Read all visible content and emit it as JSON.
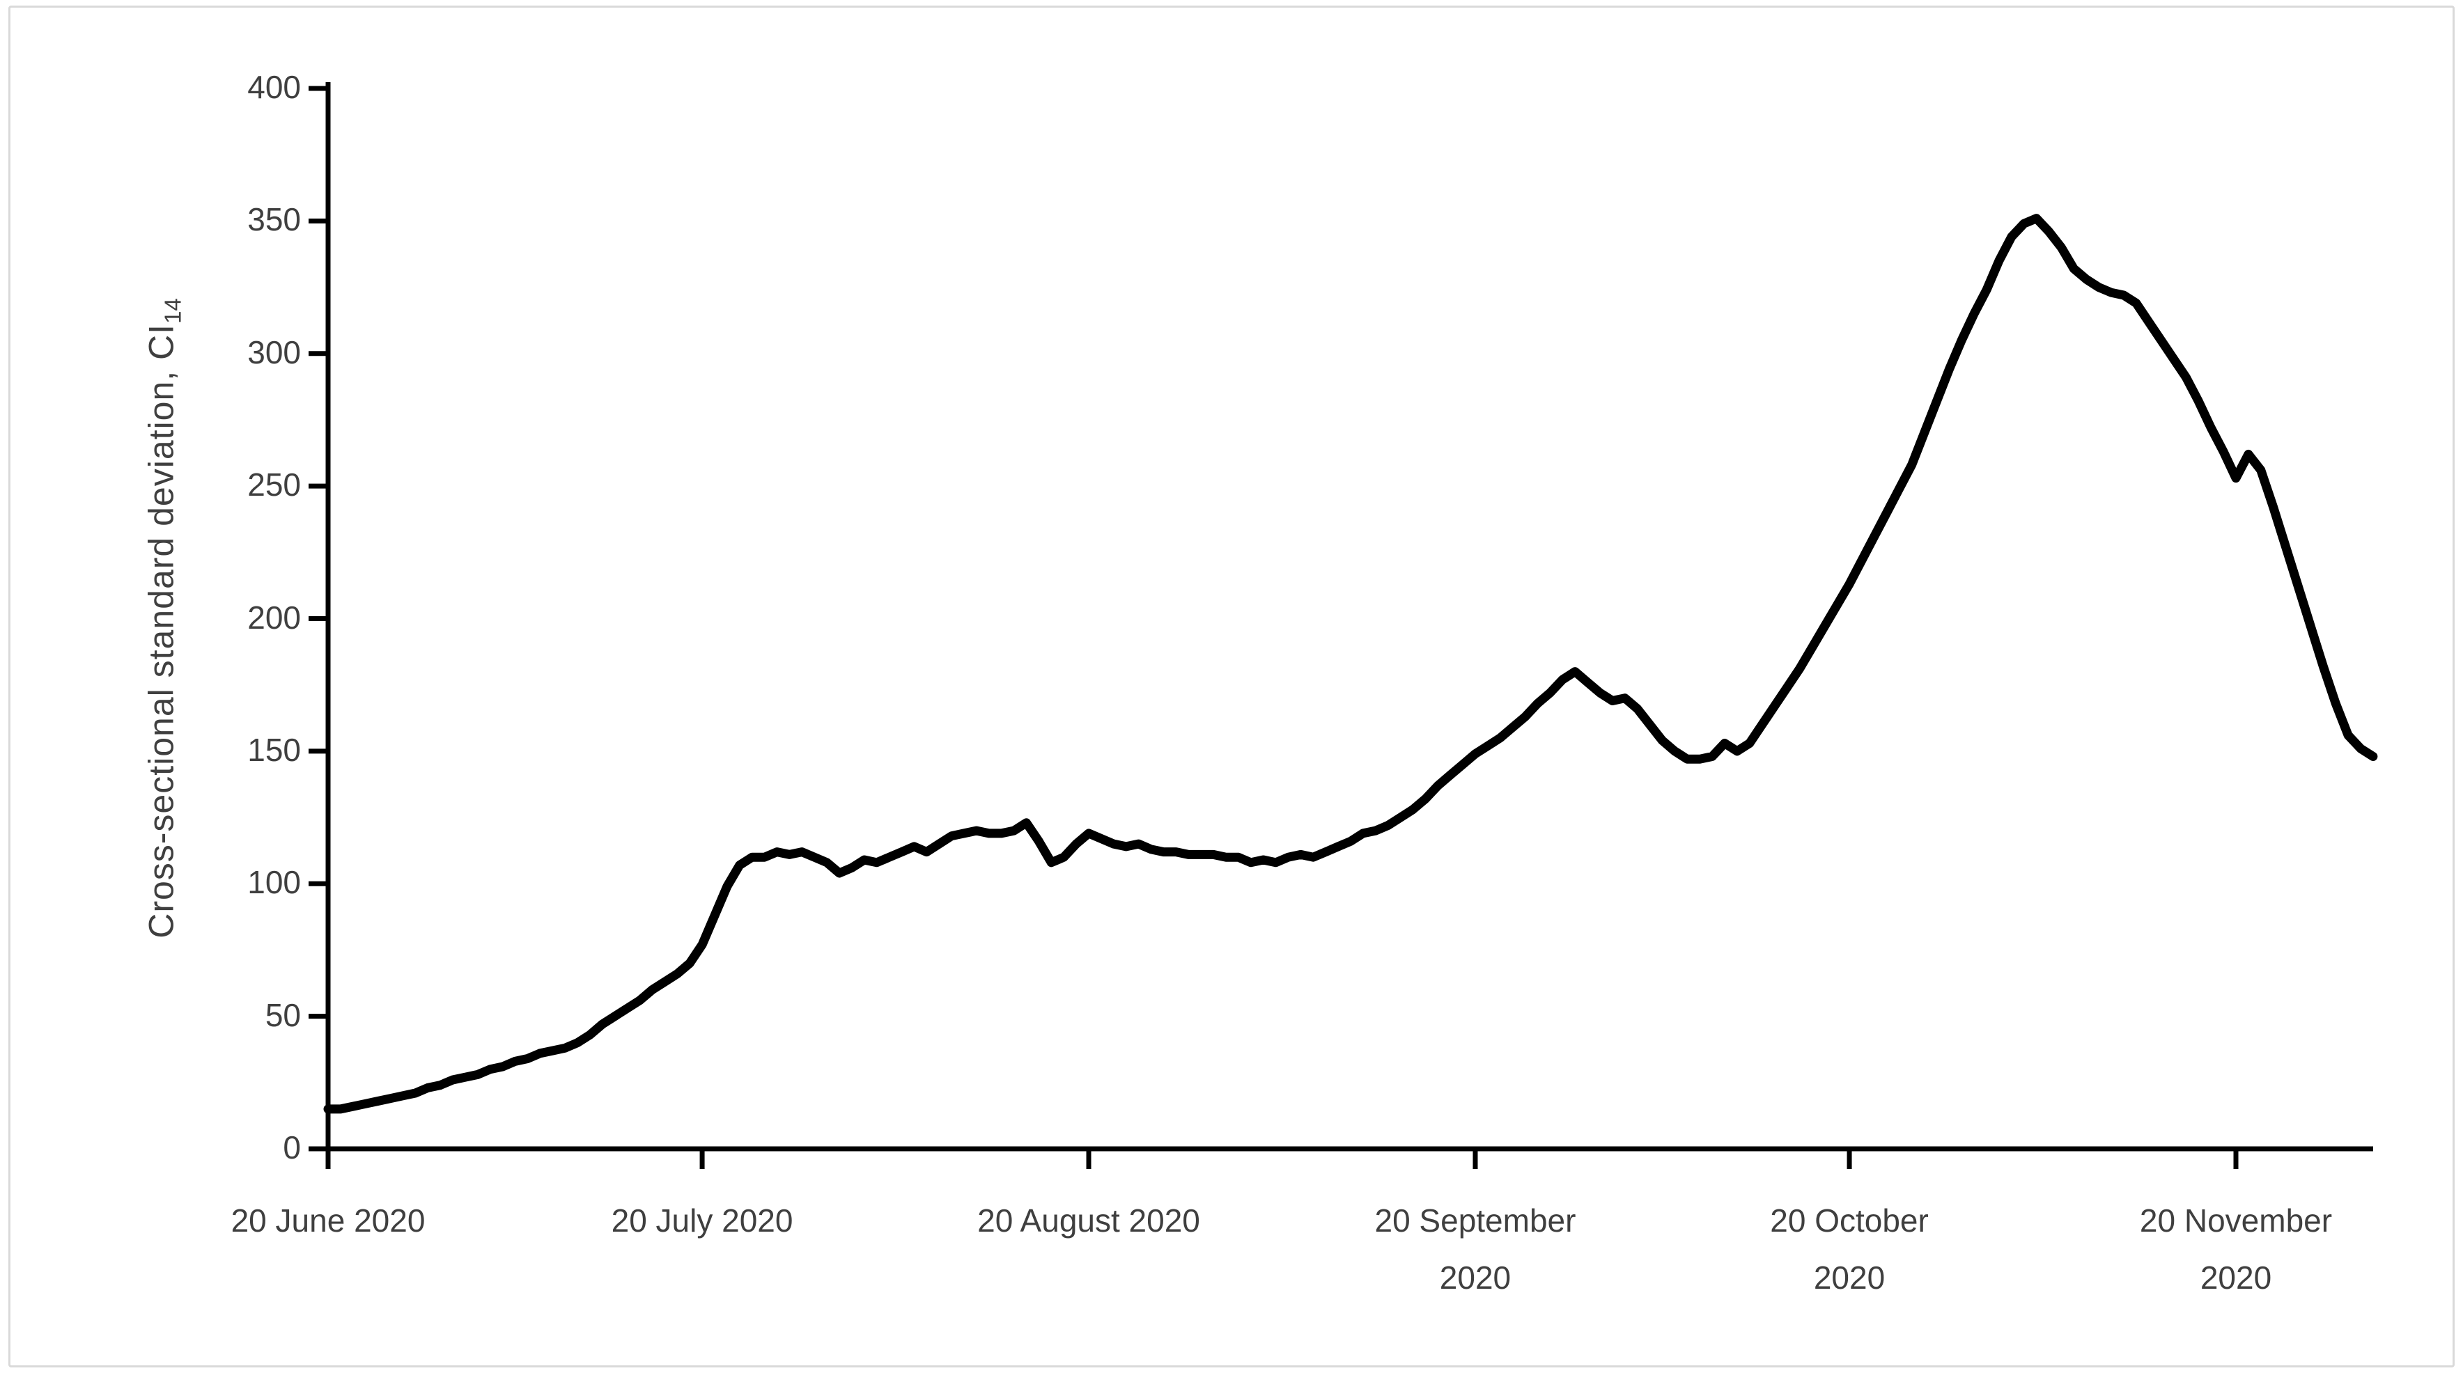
{
  "chart_data": {
    "type": "line",
    "title": "",
    "xlabel": "",
    "ylabel_main": "Cross-sectional standard deviation, CI",
    "ylabel_sub": "14",
    "ylim": [
      0,
      400
    ],
    "y_ticks": [
      0,
      50,
      100,
      150,
      200,
      250,
      300,
      350,
      400
    ],
    "x_ticks": [
      {
        "line1": "20 June 2020",
        "line2": "",
        "day": 0
      },
      {
        "line1": "20 July 2020",
        "line2": "",
        "day": 30
      },
      {
        "line1": "20 August 2020",
        "line2": "",
        "day": 61
      },
      {
        "line1": "20 September",
        "line2": "2020",
        "day": 92
      },
      {
        "line1": "20 October",
        "line2": "2020",
        "day": 122
      },
      {
        "line1": "20 November",
        "line2": "2020",
        "day": 153
      }
    ],
    "grid": false,
    "legend_position": "none",
    "line_color": "#000000",
    "axis_color": "#000000",
    "label_color": "#3f3f3f",
    "frame_color": "#d9d9d9",
    "series": [
      {
        "name": "Cross-sectional standard deviation CI14",
        "start_date": "20 June 2020",
        "step_days": 1,
        "values": [
          15,
          15,
          16,
          17,
          18,
          19,
          20,
          21,
          23,
          24,
          26,
          27,
          28,
          30,
          31,
          33,
          34,
          36,
          37,
          38,
          40,
          43,
          47,
          50,
          53,
          56,
          60,
          63,
          66,
          70,
          77,
          88,
          99,
          107,
          110,
          110,
          112,
          111,
          112,
          110,
          108,
          104,
          106,
          109,
          108,
          110,
          112,
          114,
          112,
          115,
          118,
          119,
          120,
          119,
          119,
          120,
          123,
          116,
          108,
          110,
          115,
          119,
          117,
          115,
          114,
          115,
          113,
          112,
          112,
          111,
          111,
          111,
          110,
          110,
          108,
          109,
          108,
          110,
          111,
          110,
          112,
          114,
          116,
          119,
          120,
          122,
          125,
          128,
          132,
          137,
          141,
          145,
          149,
          152,
          155,
          159,
          163,
          168,
          172,
          177,
          180,
          176,
          172,
          169,
          170,
          166,
          160,
          154,
          150,
          147,
          147,
          148,
          153,
          150,
          153,
          160,
          167,
          174,
          181,
          189,
          197,
          205,
          213,
          222,
          231,
          240,
          249,
          258,
          270,
          282,
          294,
          305,
          315,
          324,
          335,
          344,
          349,
          351,
          346,
          340,
          332,
          328,
          325,
          323,
          322,
          319,
          312,
          305,
          298,
          291,
          282,
          272,
          263,
          253,
          262,
          256,
          242,
          227,
          212,
          197,
          182,
          168,
          156,
          151,
          148
        ]
      }
    ]
  }
}
